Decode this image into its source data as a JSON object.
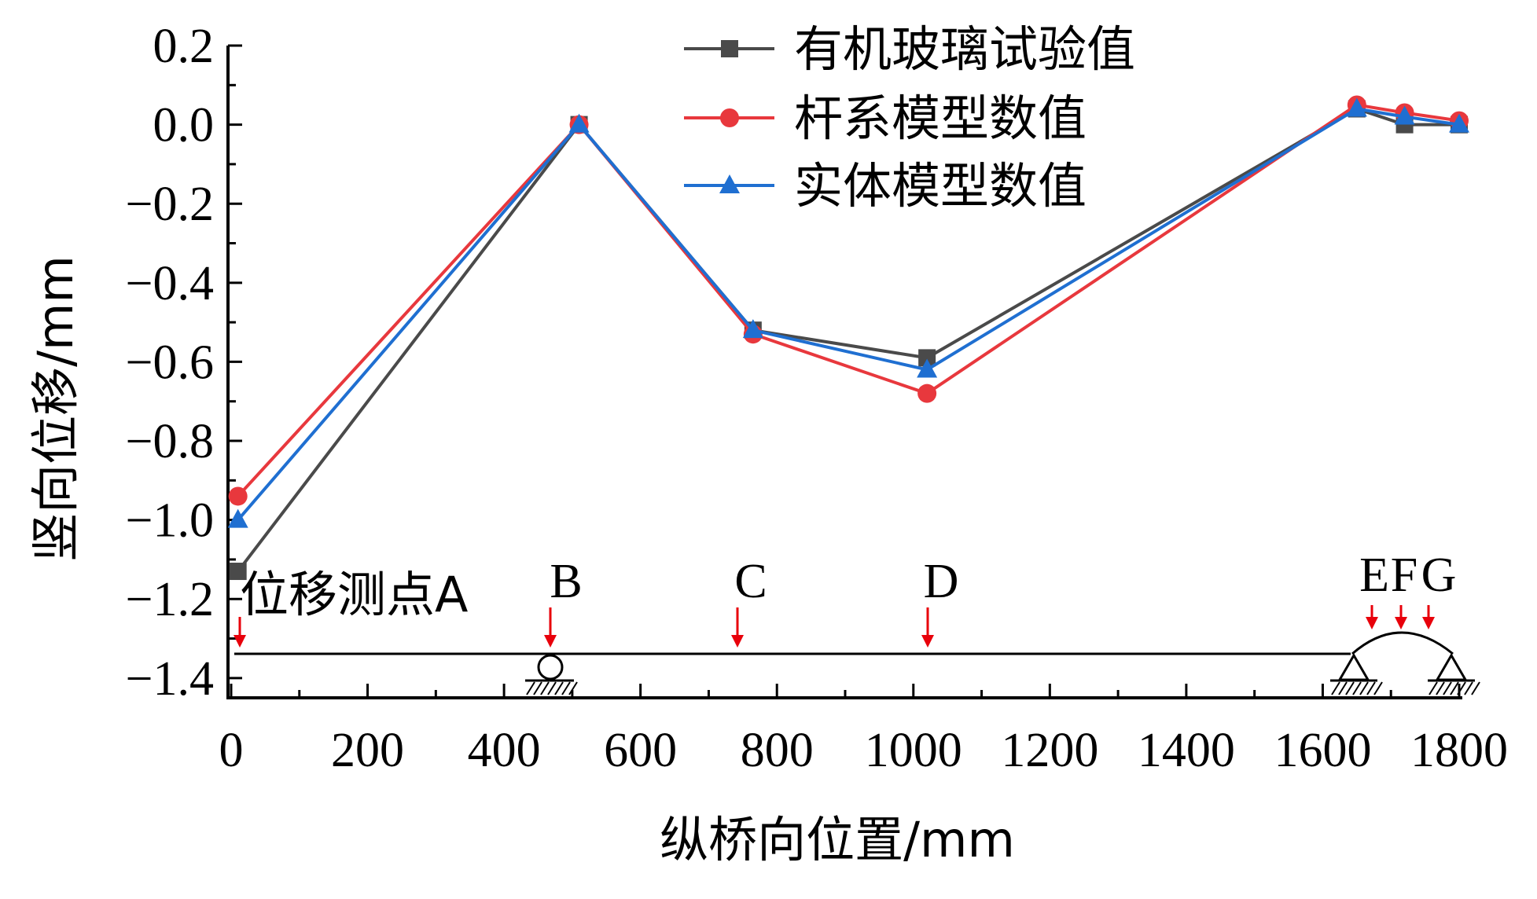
{
  "chart_data": {
    "type": "line",
    "xlabel": "纵桥向位置/mm",
    "ylabel": "竖向位移/mm",
    "xlim": [
      0,
      1800
    ],
    "ylim": [
      -1.45,
      0.2
    ],
    "xticks": [
      0,
      200,
      400,
      600,
      800,
      1000,
      1200,
      1400,
      1600,
      1800
    ],
    "xtick_labels": [
      "0",
      "200",
      "400",
      "600",
      "800",
      "1000",
      "1200",
      "1400",
      "1600",
      "1800"
    ],
    "yticks": [
      0.2,
      0.0,
      -0.2,
      -0.4,
      -0.6,
      -0.8,
      -1.0,
      -1.2,
      -1.4
    ],
    "ytick_labels": [
      "0.2",
      "0.0",
      "−0.2",
      "−0.4",
      "−0.6",
      "−0.8",
      "−1.0",
      "−1.2",
      "−1.4"
    ],
    "legend_position": "top-right",
    "grid": false,
    "series": [
      {
        "name": "有机玻璃试验值",
        "color": "#4a4a4a",
        "marker": "square",
        "x": [
          10,
          510,
          765,
          1020,
          1650,
          1720,
          1800
        ],
        "y": [
          -1.13,
          0.0,
          -0.52,
          -0.59,
          0.04,
          0.0,
          0.0
        ]
      },
      {
        "name": "杆系模型数值",
        "color": "#e8383d",
        "marker": "circle",
        "x": [
          10,
          510,
          765,
          1020,
          1650,
          1720,
          1800
        ],
        "y": [
          -0.94,
          0.0,
          -0.53,
          -0.68,
          0.05,
          0.03,
          0.01
        ]
      },
      {
        "name": "实体模型数值",
        "color": "#1f6fd1",
        "marker": "triangle",
        "x": [
          10,
          510,
          765,
          1020,
          1650,
          1720,
          1800
        ],
        "y": [
          -1.0,
          0.0,
          -0.52,
          -0.62,
          0.04,
          0.02,
          0.0
        ]
      }
    ],
    "annotations": {
      "measure_points_label": "位移测点A",
      "points": [
        "B",
        "C",
        "D",
        "E",
        "F",
        "G"
      ],
      "arrow_color": "#e8000b"
    }
  }
}
